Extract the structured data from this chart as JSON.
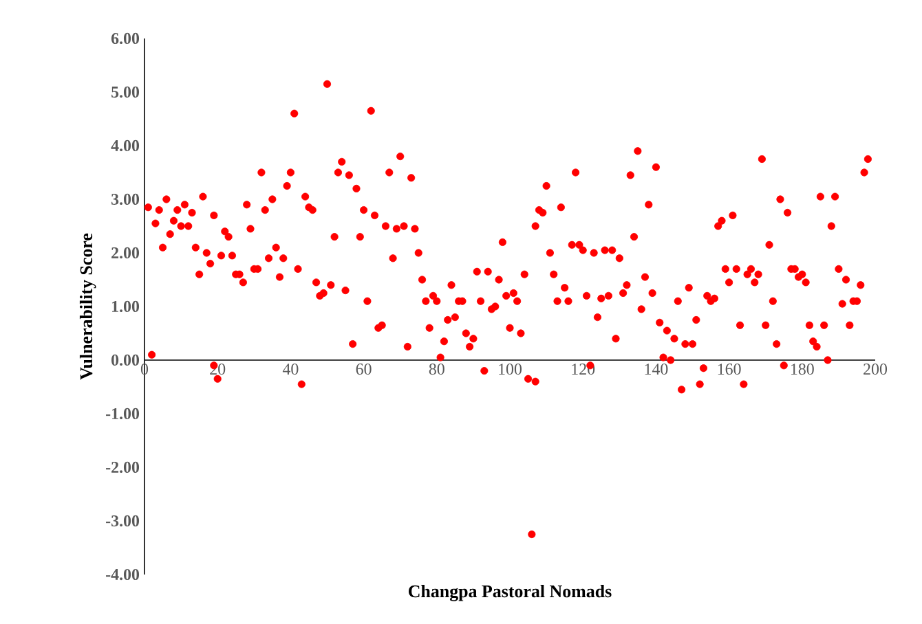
{
  "chart_data": {
    "type": "scatter",
    "xlabel": "Changpa Pastoral Nomads",
    "ylabel": "Vulnerability  Score",
    "x": [
      1,
      2,
      3,
      4,
      5,
      6,
      7,
      8,
      9,
      10,
      11,
      12,
      13,
      14,
      15,
      16,
      17,
      18,
      19,
      19,
      20,
      21,
      22,
      23,
      24,
      25,
      26,
      27,
      28,
      29,
      30,
      31,
      32,
      33,
      34,
      35,
      36,
      37,
      38,
      39,
      40,
      41,
      42,
      43,
      44,
      45,
      46,
      47,
      48,
      49,
      50,
      51,
      52,
      53,
      54,
      55,
      56,
      57,
      58,
      59,
      60,
      61,
      62,
      63,
      64,
      65,
      66,
      67,
      68,
      69,
      70,
      71,
      72,
      73,
      74,
      75,
      76,
      77,
      78,
      79,
      80,
      81,
      82,
      83,
      84,
      85,
      86,
      87,
      88,
      89,
      90,
      91,
      92,
      93,
      94,
      95,
      96,
      97,
      98,
      99,
      100,
      101,
      102,
      103,
      104,
      105,
      106,
      107,
      107,
      108,
      109,
      110,
      111,
      112,
      113,
      114,
      115,
      116,
      117,
      118,
      119,
      120,
      121,
      122,
      123,
      124,
      125,
      126,
      127,
      128,
      129,
      130,
      131,
      132,
      133,
      134,
      135,
      136,
      137,
      138,
      139,
      140,
      141,
      142,
      143,
      144,
      145,
      146,
      147,
      148,
      149,
      150,
      151,
      152,
      153,
      154,
      155,
      156,
      157,
      158,
      159,
      160,
      161,
      162,
      163,
      164,
      165,
      166,
      167,
      168,
      169,
      170,
      171,
      172,
      173,
      174,
      175,
      176,
      177,
      178,
      179,
      180,
      181,
      182,
      183,
      184,
      185,
      186,
      187,
      188,
      189,
      190,
      191,
      192,
      193,
      194,
      195,
      196,
      197,
      198
    ],
    "series": [
      {
        "color": "#ff0000",
        "values": [
          2.85,
          0.1,
          2.55,
          2.8,
          2.1,
          3.0,
          2.35,
          2.6,
          2.8,
          2.5,
          2.9,
          2.5,
          2.75,
          2.1,
          1.6,
          3.05,
          2.0,
          1.8,
          2.7,
          -0.1,
          -0.35,
          1.95,
          2.4,
          2.3,
          1.95,
          1.6,
          1.6,
          1.45,
          2.9,
          2.45,
          1.7,
          1.7,
          3.5,
          2.8,
          1.9,
          3.0,
          2.1,
          1.55,
          1.9,
          3.25,
          3.5,
          4.6,
          1.7,
          -0.45,
          3.05,
          2.85,
          2.8,
          1.45,
          1.2,
          1.25,
          5.15,
          1.4,
          2.3,
          3.5,
          3.7,
          1.3,
          3.45,
          0.3,
          3.2,
          2.3,
          2.8,
          1.1,
          4.65,
          2.7,
          0.6,
          0.65,
          2.5,
          3.5,
          1.9,
          2.45,
          3.8,
          2.5,
          0.25,
          3.4,
          2.45,
          2.0,
          1.5,
          1.1,
          0.6,
          1.2,
          1.1,
          0.05,
          0.35,
          0.75,
          1.4,
          0.8,
          1.1,
          1.1,
          0.5,
          0.25,
          0.4,
          1.65,
          1.1,
          -0.2,
          1.65,
          0.95,
          1.0,
          1.5,
          2.2,
          1.2,
          0.6,
          1.25,
          1.1,
          0.5,
          1.6,
          -0.35,
          -3.25,
          2.5,
          -0.4,
          2.8,
          2.75,
          3.25,
          2.0,
          1.6,
          1.1,
          2.85,
          1.35,
          1.1,
          2.15,
          3.5,
          2.15,
          2.05,
          1.2,
          -0.1,
          2.0,
          0.8,
          1.15,
          2.05,
          1.2,
          2.05,
          0.4,
          1.9,
          1.25,
          1.4,
          3.45,
          2.3,
          3.9,
          0.95,
          1.55,
          2.9,
          1.25,
          3.6,
          0.7,
          0.05,
          0.55,
          0.0,
          0.4,
          1.1,
          -0.55,
          0.3,
          1.35,
          0.3,
          0.75,
          -0.45,
          -0.15,
          1.2,
          1.1,
          1.15,
          2.5,
          2.6,
          1.7,
          1.45,
          2.7,
          1.7,
          0.65,
          -0.45,
          1.6,
          1.7,
          1.45,
          1.6,
          3.75,
          0.65,
          2.15,
          1.1,
          0.3,
          3.0,
          -0.1,
          2.75,
          1.7,
          1.7,
          1.55,
          1.6,
          1.45,
          0.65,
          0.35,
          0.25,
          3.05,
          0.65,
          0.0,
          2.5,
          3.05,
          1.7,
          1.05,
          1.5,
          0.65,
          1.1,
          1.1,
          1.4,
          3.5,
          3.75
        ]
      }
    ],
    "marker": "circle",
    "xlim": [
      0,
      200
    ],
    "xticks": [
      0,
      20,
      40,
      60,
      80,
      100,
      120,
      140,
      160,
      180,
      200
    ],
    "ylim": [
      -4,
      6
    ],
    "yticks": [
      {
        "value": -4,
        "label": "-4.00"
      },
      {
        "value": -3,
        "label": "-3.00"
      },
      {
        "value": -2,
        "label": "-2.00"
      },
      {
        "value": -1,
        "label": "-1.00"
      },
      {
        "value": 0,
        "label": "0.00"
      },
      {
        "value": 1,
        "label": "1.00"
      },
      {
        "value": 2,
        "label": "2.00"
      },
      {
        "value": 3,
        "label": "3.00"
      },
      {
        "value": 4,
        "label": "4.00"
      },
      {
        "value": 5,
        "label": "5.00"
      },
      {
        "value": 6,
        "label": "6.00"
      }
    ]
  }
}
